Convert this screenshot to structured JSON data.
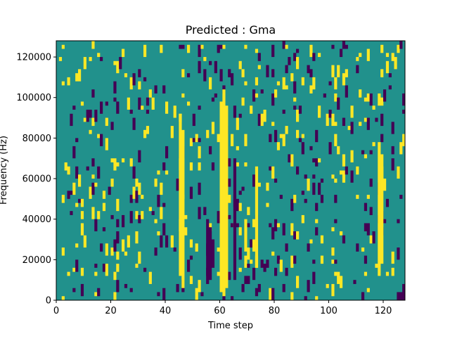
{
  "chart_data": {
    "type": "heatmap",
    "title": "Predicted : Gma",
    "xlabel": "Time step",
    "ylabel": "Frequency (Hz)",
    "xlim": [
      0,
      128
    ],
    "ylim": [
      0,
      128000
    ],
    "x_ticks": [
      0,
      20,
      40,
      60,
      80,
      100,
      120
    ],
    "y_ticks": [
      0,
      20000,
      40000,
      60000,
      80000,
      100000,
      120000
    ],
    "x_tick_labels": [
      "0",
      "20",
      "40",
      "60",
      "80",
      "100",
      "120"
    ],
    "y_tick_labels": [
      "0",
      "20000",
      "40000",
      "60000",
      "80000",
      "100000",
      "120000"
    ],
    "levels": {
      "low": -1,
      "mid": 0,
      "high": 1
    },
    "colors": {
      "low": "#440154",
      "mid": "#21918c",
      "high": "#fde725"
    },
    "background_value": 0,
    "high_bands": [
      {
        "x": 45.5,
        "y0": 12000,
        "y1": 92000
      },
      {
        "x": 46.5,
        "y0": 6000,
        "y1": 84000
      },
      {
        "x": 60.5,
        "y0": 4000,
        "y1": 98000
      },
      {
        "x": 61.5,
        "y0": 2000,
        "y1": 104000
      },
      {
        "x": 62.5,
        "y0": 6000,
        "y1": 96000
      },
      {
        "x": 118.5,
        "y0": 12000,
        "y1": 78000
      },
      {
        "x": 119.5,
        "y0": 18000,
        "y1": 72000
      },
      {
        "x": 73.5,
        "y0": 16000,
        "y1": 66000
      },
      {
        "x": 69.5,
        "y0": 24000,
        "y1": 40000
      }
    ],
    "low_bands": [
      {
        "x": 55.5,
        "y0": 8000,
        "y1": 40000
      },
      {
        "x": 56.5,
        "y0": 10000,
        "y1": 36000
      },
      {
        "x": 57.5,
        "y0": 16000,
        "y1": 30000
      },
      {
        "x": 65.5,
        "y0": 10000,
        "y1": 70000
      },
      {
        "x": 69.5,
        "y0": 8000,
        "y1": 12000
      },
      {
        "x": 70.5,
        "y0": 8000,
        "y1": 12000
      },
      {
        "x": 125.5,
        "y0": 0,
        "y1": 4000
      },
      {
        "x": 126.5,
        "y0": 0,
        "y1": 4000
      },
      {
        "x": 127.5,
        "y0": 0,
        "y1": 8000
      }
    ],
    "noise_high_fraction": 0.035,
    "noise_low_fraction": 0.035
  }
}
